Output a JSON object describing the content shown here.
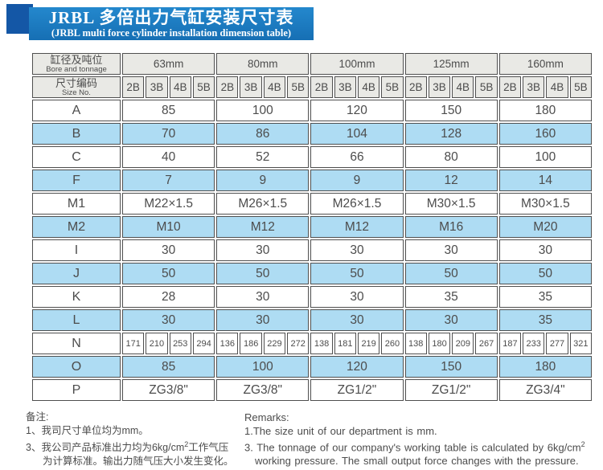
{
  "banner": {
    "title_cn": "JRBL 多倍出力气缸安装尺寸表",
    "title_en": "(JRBL multi force cylinder installation dimension table)"
  },
  "colors": {
    "banner_blue": "#1a7dc2",
    "ribbon_dark_blue": "#1457a6",
    "header_gray": "#e9e9e5",
    "row_blue": "#aedcf3",
    "border_gray": "#4f4f4f",
    "text_gray": "#4c4c4c"
  },
  "table": {
    "corner": {
      "cn": "缸径及吨位",
      "en": "Bore and tonnage"
    },
    "size_no": {
      "cn": "尺寸编码",
      "en": "Size No."
    },
    "bores": [
      "63mm",
      "80mm",
      "100mm",
      "125mm",
      "160mm"
    ],
    "size_codes": [
      "2B",
      "3B",
      "4B",
      "5B"
    ],
    "rows": [
      {
        "label": "A",
        "values": [
          "85",
          "100",
          "120",
          "150",
          "180"
        ]
      },
      {
        "label": "B",
        "values": [
          "70",
          "86",
          "104",
          "128",
          "160"
        ]
      },
      {
        "label": "C",
        "values": [
          "40",
          "52",
          "66",
          "80",
          "100"
        ]
      },
      {
        "label": "F",
        "values": [
          "7",
          "9",
          "9",
          "12",
          "14"
        ]
      },
      {
        "label": "M1",
        "values": [
          "M22×1.5",
          "M26×1.5",
          "M26×1.5",
          "M30×1.5",
          "M30×1.5"
        ]
      },
      {
        "label": "M2",
        "values": [
          "M10",
          "M12",
          "M12",
          "M16",
          "M20"
        ]
      },
      {
        "label": "I",
        "values": [
          "30",
          "30",
          "30",
          "30",
          "30"
        ]
      },
      {
        "label": "J",
        "values": [
          "50",
          "50",
          "50",
          "50",
          "50"
        ]
      },
      {
        "label": "K",
        "values": [
          "28",
          "30",
          "30",
          "35",
          "35"
        ]
      },
      {
        "label": "L",
        "values": [
          "30",
          "30",
          "30",
          "30",
          "35"
        ]
      },
      {
        "label": "N",
        "values": [
          [
            "171",
            "210",
            "253",
            "294"
          ],
          [
            "136",
            "186",
            "229",
            "272"
          ],
          [
            "138",
            "181",
            "219",
            "260"
          ],
          [
            "138",
            "180",
            "209",
            "267"
          ],
          [
            "187",
            "233",
            "277",
            "321"
          ]
        ]
      },
      {
        "label": "O",
        "values": [
          "85",
          "100",
          "120",
          "150",
          "180"
        ]
      },
      {
        "label": "P",
        "values": [
          "ZG3/8\"",
          "ZG3/8\"",
          "ZG1/2\"",
          "ZG1/2\"",
          "ZG3/4\""
        ]
      }
    ]
  },
  "notes": {
    "cn": {
      "title": "备注:",
      "line1": "1、我司尺寸单位均为mm。",
      "line2_before": "3、我公司产品标准出力均为6kg/cm",
      "line2_sup": "2",
      "line2_after": "工作气压",
      "line3": "为计算标准。输出力随气压大小发生变化。"
    },
    "en": {
      "title": "Remarks:",
      "line1": "1.The size unit of our department is mm.",
      "line2_before": "3. The tonnage of our company's working table is calculated by 6kg/cm",
      "line2_sup": "2",
      "line3": "working pressure. The small output force changes with the pressure."
    }
  }
}
